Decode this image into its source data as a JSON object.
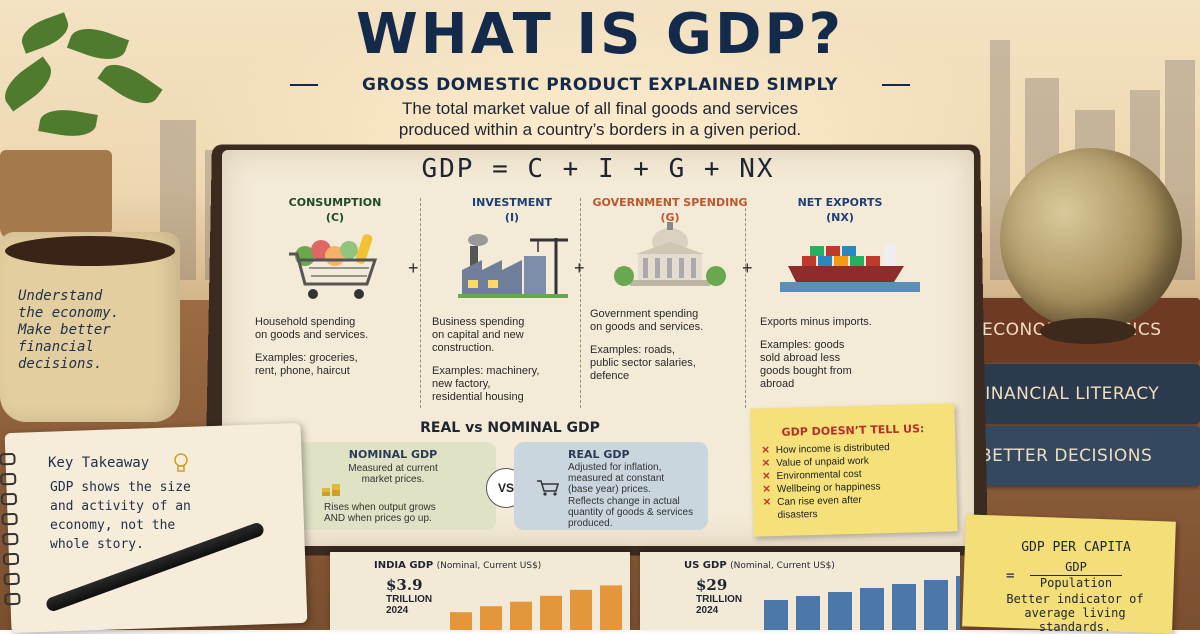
{
  "header": {
    "title": "WHAT IS GDP?",
    "subtitle": "GROSS DOMESTIC PRODUCT EXPLAINED SIMPLY",
    "definition_line1": "The total market value of all final goods and services",
    "definition_line2": "produced within a country’s borders in a given period."
  },
  "mug": {
    "text": [
      "Understand",
      "the economy.",
      "Make better",
      "financial",
      "decisions."
    ]
  },
  "notebook": {
    "formula": "GDP = C + I + G + NX",
    "components": [
      {
        "name": "CONSUMPTION",
        "symbol": "(C)",
        "color": "#1f4a2a",
        "icon": "shopping-cart-icon",
        "desc": [
          "Household spending",
          "on goods and services."
        ],
        "examples": [
          "Examples: groceries,",
          "rent, phone, haircut"
        ]
      },
      {
        "name": "INVESTMENT",
        "symbol": "(I)",
        "color": "#1f3f78",
        "icon": "factory-icon",
        "desc": [
          "Business spending",
          "on capital and new",
          "construction."
        ],
        "examples": [
          "Examples: machinery,",
          "new factory,",
          "residential housing"
        ]
      },
      {
        "name": "GOVERNMENT SPENDING",
        "symbol": "(G)",
        "color": "#c0562a",
        "icon": "government-building-icon",
        "desc": [
          "Government spending",
          "on goods and services."
        ],
        "examples": [
          "Examples: roads,",
          "public sector salaries,",
          "defence"
        ]
      },
      {
        "name": "NET EXPORTS",
        "symbol": "(NX)",
        "color": "#1f3f78",
        "icon": "cargo-ship-icon",
        "desc": [
          "Exports minus imports."
        ],
        "examples": [
          "Examples: goods",
          "sold abroad  less",
          "goods bought from",
          "abroad"
        ]
      }
    ],
    "plus": "+",
    "real_vs_nominal": {
      "title": "REAL vs NOMINAL GDP",
      "vs": "VS",
      "nominal": {
        "title": "NOMINAL GDP",
        "desc": [
          "Measured at current",
          "market prices."
        ],
        "note": [
          "Rises when output grows",
          "AND when prices go up."
        ],
        "icon": "coins-icon"
      },
      "real": {
        "title": "REAL GDP",
        "desc": [
          "Adjusted for inflation,",
          "measured at constant",
          "(base year) prices."
        ],
        "note": [
          "Reflects change in actual",
          "quantity of goods & services",
          "produced."
        ],
        "icon": "cart-icon"
      }
    },
    "sticky": {
      "title": "GDP DOESN’T TELL US:",
      "marker": "✕",
      "items": [
        "How income is distributed",
        "Value of unpaid work",
        "Environmental cost",
        "Wellbeing or happiness",
        "Can rise even after",
        "disasters"
      ]
    }
  },
  "key_takeaway": {
    "label": "Key Takeaway",
    "icon": "lightbulb-icon",
    "body": [
      "GDP shows the size",
      "and activity of an",
      "economy, not the",
      "whole story."
    ]
  },
  "books": [
    "ECONOMICS BASICS",
    "FINANCIAL LITERACY",
    "BETTER DECISIONS"
  ],
  "per_capita": {
    "title": "GDP PER CAPITA",
    "eq": "=",
    "numerator": "GDP",
    "denominator": "Population",
    "note": [
      "Better indicator of",
      "average living standards."
    ]
  },
  "chart_data": [
    {
      "type": "bar",
      "title": "INDIA GDP",
      "subtitle": "(Nominal, Current US$)",
      "headline_value": "$3.9",
      "headline_unit": "TRILLION",
      "headline_year": "2024",
      "values": [
        1.2,
        1.6,
        1.9,
        2.3,
        2.7,
        3.0,
        3.5,
        3.9
      ],
      "color": "#e3973a"
    },
    {
      "type": "bar",
      "title": "US GDP",
      "subtitle": "(Nominal, Current US$)",
      "headline_value": "$29",
      "headline_unit": "TRILLION",
      "headline_year": "2024",
      "values": [
        15,
        17,
        19,
        21,
        23,
        25,
        27,
        29
      ],
      "color": "#4b78a8"
    }
  ]
}
